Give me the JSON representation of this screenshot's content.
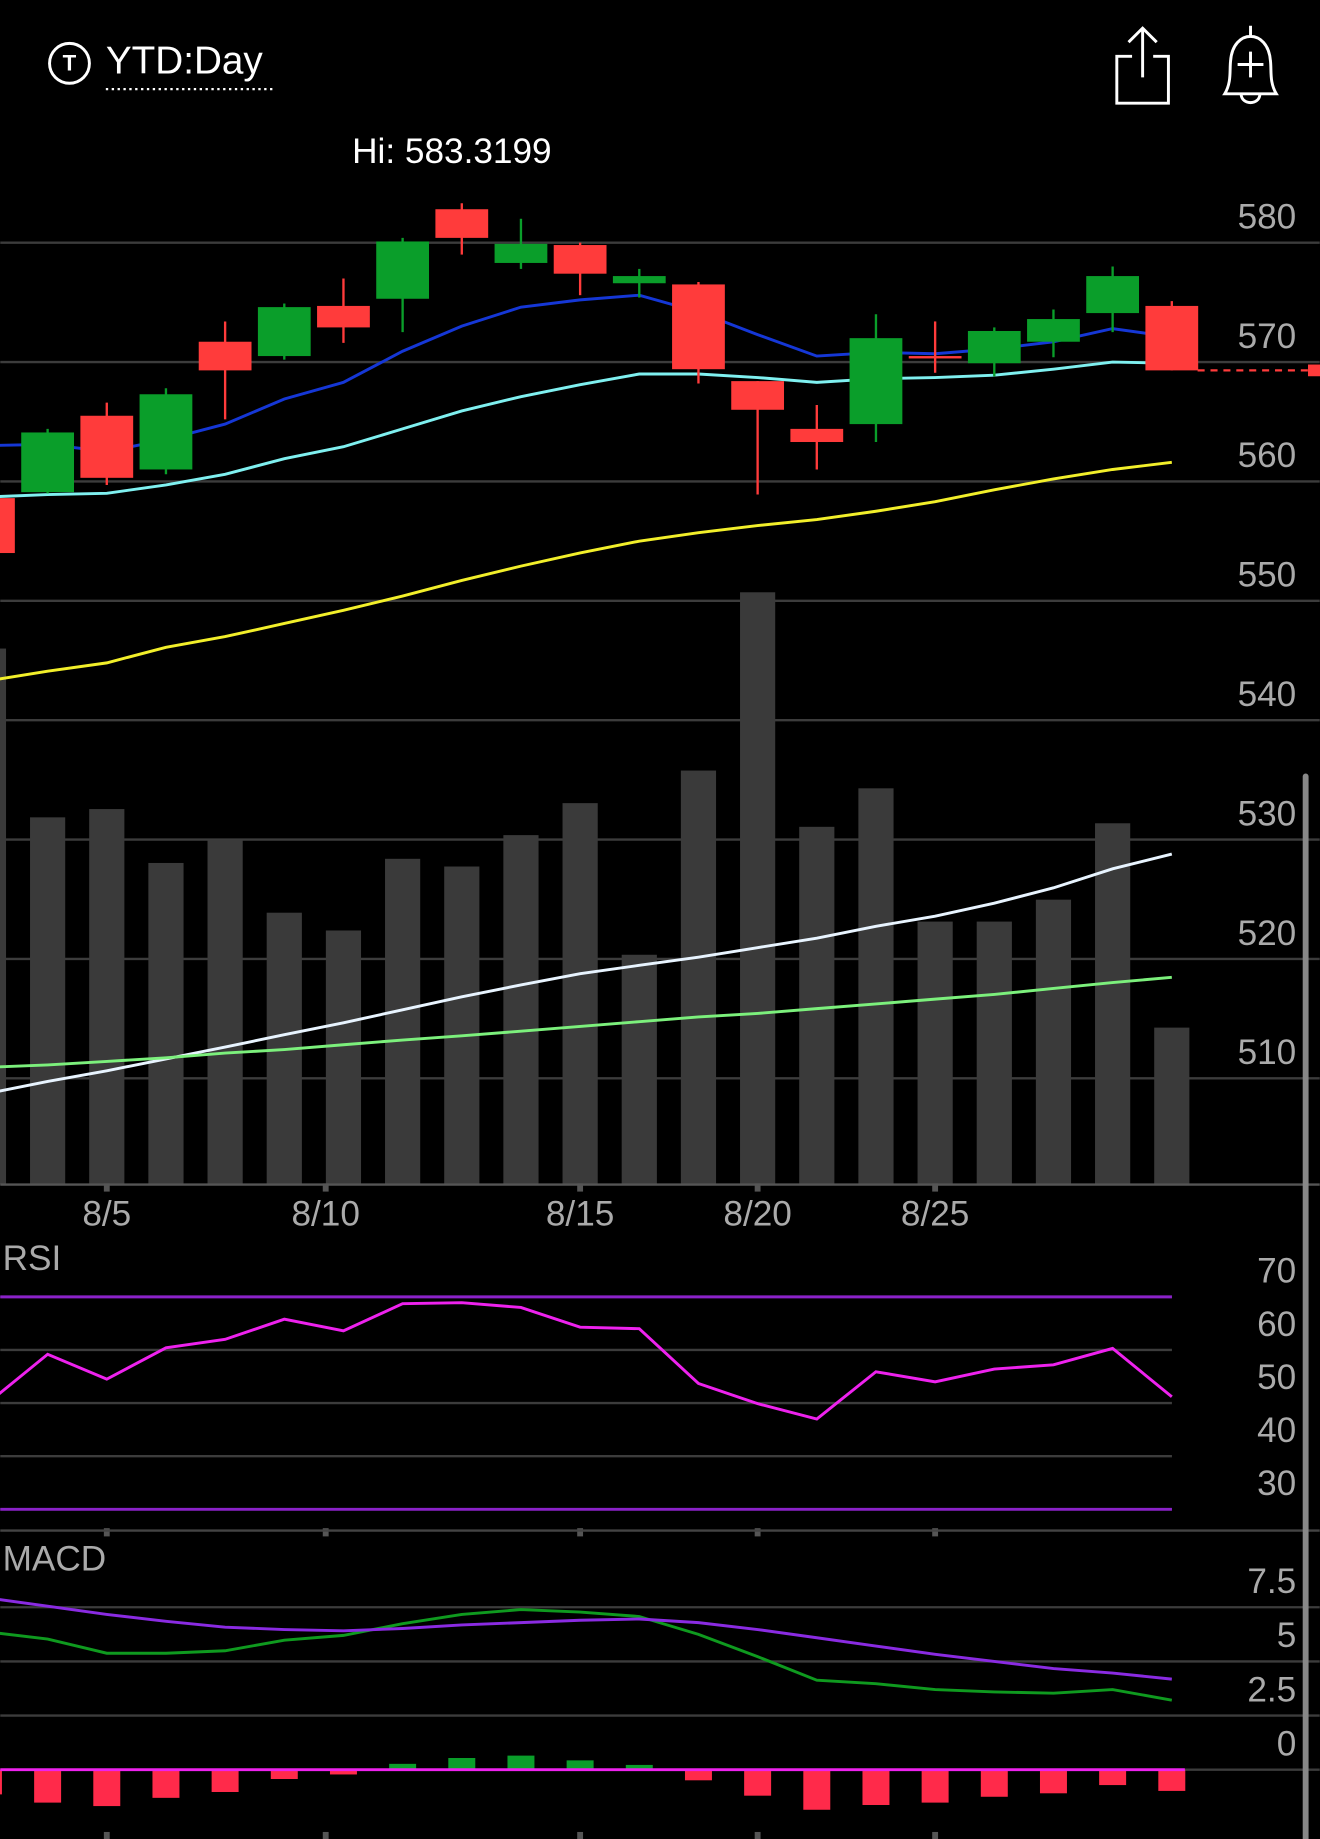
{
  "header": {
    "icon": "T",
    "title": "YTD:Day"
  },
  "chart_data": [
    {
      "type": "candlestick",
      "annotation": "Hi: 583.3199",
      "x": [
        0,
        1,
        2,
        3,
        4,
        5,
        6,
        7,
        8,
        9,
        10,
        11,
        12,
        13,
        14,
        15,
        16,
        17,
        18,
        19,
        20
      ],
      "xlim": [
        0.2,
        22.5
      ],
      "xticks": [
        {
          "value": 2,
          "label": "8/5"
        },
        {
          "value": 5.7,
          "label": "8/10"
        },
        {
          "value": 10,
          "label": "8/15"
        },
        {
          "value": 13,
          "label": "8/20"
        },
        {
          "value": 16,
          "label": "8/25"
        }
      ],
      "ylim": [
        501,
        585
      ],
      "yticks": [
        580,
        570,
        560,
        550,
        540,
        530,
        520,
        510
      ],
      "grid": true,
      "open": [
        558.6,
        559.1,
        565.5,
        561.0,
        571.7,
        570.5,
        574.7,
        575.3,
        582.8,
        578.3,
        579.8,
        576.6,
        576.5,
        568.4,
        564.4,
        564.8,
        570.5,
        569.9,
        571.7,
        574.1,
        574.7
      ],
      "high": [
        559.0,
        564.4,
        566.6,
        567.8,
        573.4,
        574.9,
        577.0,
        580.4,
        583.3,
        582.0,
        580.0,
        577.8,
        576.7,
        568.4,
        566.4,
        574.0,
        573.4,
        572.9,
        574.4,
        578.0,
        575.1
      ],
      "low": [
        553.5,
        559.0,
        559.7,
        560.6,
        565.2,
        570.2,
        571.6,
        572.5,
        579.0,
        577.8,
        575.6,
        575.4,
        568.2,
        558.9,
        561.0,
        563.3,
        569.1,
        568.8,
        570.4,
        572.5,
        569.3
      ],
      "close": [
        554.0,
        564.1,
        560.3,
        567.3,
        569.3,
        574.6,
        572.9,
        580.1,
        580.4,
        579.9,
        577.4,
        577.2,
        569.4,
        566.0,
        563.3,
        572.0,
        570.3,
        572.6,
        573.6,
        577.2,
        569.3
      ],
      "up_color": "#0a9e2a",
      "down_color": "#ff3b3b",
      "current_price": 569.3,
      "series": [
        {
          "color": "#1537d6",
          "values": [
            563.0,
            563.1,
            562.5,
            563.5,
            564.8,
            566.9,
            568.3,
            570.9,
            573.0,
            574.6,
            575.2,
            575.6,
            574.2,
            572.3,
            570.5,
            570.8,
            570.7,
            571.1,
            571.7,
            572.8,
            572.1
          ]
        },
        {
          "color": "#7ff0f0",
          "values": [
            558.7,
            558.9,
            559.0,
            559.7,
            560.6,
            561.9,
            562.9,
            564.4,
            565.9,
            567.1,
            568.1,
            569.0,
            569.0,
            568.7,
            568.3,
            568.6,
            568.7,
            568.9,
            569.4,
            570.0,
            569.9
          ]
        },
        {
          "color": "#f2ef2a",
          "values": [
            543.3,
            544.1,
            544.8,
            546.1,
            547.0,
            548.1,
            549.2,
            550.4,
            551.7,
            552.9,
            554.0,
            555.0,
            555.7,
            556.3,
            556.8,
            557.5,
            558.3,
            559.3,
            560.2,
            561.0,
            561.6
          ]
        }
      ],
      "volume": {
        "color": "#3a3a3a",
        "lim": [
          0,
          100
        ],
        "values": [
          90.5,
          62.0,
          63.4,
          54.3,
          58.2,
          45.9,
          42.9,
          55.0,
          53.7,
          59.0,
          64.4,
          38.8,
          69.9,
          100,
          60.4,
          66.9,
          44.4,
          44.4,
          48.1,
          61.0,
          26.5
        ],
        "series": [
          {
            "color": "#e8f4ff",
            "values": [
              15.4,
              17.4,
              19.2,
              21.2,
              23.2,
              25.3,
              27.3,
              29.5,
              31.7,
              33.7,
              35.6,
              37.0,
              38.4,
              40.0,
              41.6,
              43.6,
              45.3,
              47.5,
              50.1,
              53.3,
              55.8
            ]
          },
          {
            "color": "#7cf07c",
            "values": [
              19.8,
              20.2,
              20.8,
              21.4,
              22.2,
              22.8,
              23.6,
              24.4,
              25.1,
              25.9,
              26.7,
              27.5,
              28.3,
              28.9,
              29.7,
              30.5,
              31.3,
              32.1,
              33.1,
              34.1,
              35.0
            ]
          }
        ]
      }
    },
    {
      "type": "line",
      "title": "RSI",
      "ylim": [
        26,
        79
      ],
      "yticks": [
        70,
        60,
        50,
        40,
        30
      ],
      "grid": true,
      "levels": [
        70,
        30
      ],
      "level_color": "#8a22c8",
      "series": [
        {
          "color": "#ee22ee",
          "values": [
            50.1,
            59.2,
            54.5,
            60.4,
            62.0,
            65.8,
            63.6,
            68.7,
            68.9,
            68.0,
            64.3,
            64.0,
            53.7,
            49.9,
            47.0,
            55.9,
            54.0,
            56.4,
            57.2,
            60.3,
            51.2
          ]
        }
      ]
    },
    {
      "type": "macd",
      "title": "MACD",
      "ylim": [
        -3.2,
        10.5
      ],
      "yticks": [
        {
          "value": 7.5,
          "label": "7.5"
        },
        5,
        {
          "value": 2.5,
          "label": "2.5"
        },
        0
      ],
      "grid": true,
      "zero_color": "#ee22ee",
      "series": [
        {
          "color": "#0f9a1f",
          "values": [
            6.36,
            6.03,
            5.38,
            5.38,
            5.49,
            5.98,
            6.2,
            6.74,
            7.17,
            7.39,
            7.28,
            7.07,
            6.25,
            5.22,
            4.13,
            3.97,
            3.7,
            3.59,
            3.53,
            3.7,
            3.21
          ]
        },
        {
          "color": "#8a2be2",
          "values": [
            7.93,
            7.55,
            7.17,
            6.85,
            6.58,
            6.47,
            6.41,
            6.52,
            6.68,
            6.79,
            6.9,
            6.96,
            6.79,
            6.47,
            6.09,
            5.71,
            5.33,
            5.0,
            4.67,
            4.46,
            4.18
          ]
        }
      ],
      "histogram": {
        "up_color": "#0a9e2a",
        "down_color": "#ff2a4a",
        "values": [
          -1.14,
          -1.52,
          -1.68,
          -1.3,
          -1.03,
          -0.43,
          -0.22,
          0.27,
          0.54,
          0.65,
          0.43,
          0.22,
          -0.49,
          -1.2,
          -1.85,
          -1.63,
          -1.52,
          -1.25,
          -1.09,
          -0.71,
          -0.98
        ]
      }
    }
  ]
}
